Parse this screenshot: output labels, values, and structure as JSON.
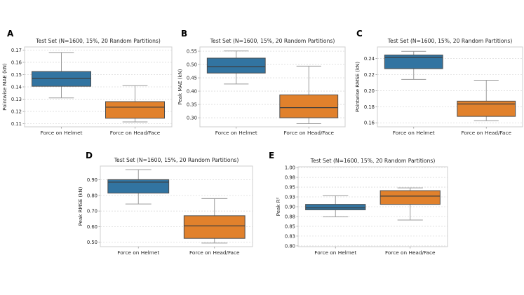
{
  "figure_background": "#ffffff",
  "shared": {
    "title": "Test Set (N=1600, 15%, 20 Random Partitions)",
    "categories": [
      "Force on Helmet",
      "Force on Head/Face"
    ]
  },
  "colors": {
    "helmet_box": "#3274a1",
    "headface_box": "#e1812c",
    "box_edge": "#4d4d4d",
    "median_line": "#3d3d3d",
    "whisker": "#9a9a9a",
    "grid": "#dcdcdc",
    "spine": "#cfcfcf",
    "text": "#262626"
  },
  "chart_data": [
    {
      "panel": "A",
      "type": "boxplot",
      "title": "Test Set (N=1600, 15%, 20 Random Partitions)",
      "ylabel": "Pointwise MAE (kN)",
      "categories": [
        "Force on Helmet",
        "Force on Head/Face"
      ],
      "ylim": [
        0.1075,
        0.1725
      ],
      "ytick_vals": [
        0.11,
        0.12,
        0.13,
        0.14,
        0.15,
        0.16,
        0.17
      ],
      "ytick_labels": [
        "0.11",
        "0.12",
        "0.13",
        "0.14",
        "0.15",
        "0.16",
        "0.17"
      ],
      "grid": "horizontal-dashed",
      "legend": "none",
      "series": [
        {
          "name": "Force on Helmet",
          "color": "#3274a1",
          "whisker_low": 0.131,
          "q1": 0.1405,
          "median": 0.147,
          "q3": 0.1525,
          "whisker_high": 0.168
        },
        {
          "name": "Force on Head/Face",
          "color": "#e1812c",
          "whisker_low": 0.1115,
          "q1": 0.1145,
          "median": 0.1235,
          "q3": 0.128,
          "whisker_high": 0.141
        }
      ]
    },
    {
      "panel": "B",
      "type": "boxplot",
      "title": "Test Set (N=1600, 15%, 20 Random Partitions)",
      "ylabel": "Peak MAE (kN)",
      "categories": [
        "Force on Helmet",
        "Force on Head/Face"
      ],
      "ylim": [
        0.266,
        0.566
      ],
      "ytick_vals": [
        0.3,
        0.35,
        0.4,
        0.45,
        0.5,
        0.55
      ],
      "ytick_labels": [
        "0.30",
        "0.35",
        "0.40",
        "0.45",
        "0.50",
        "0.55"
      ],
      "grid": "horizontal-dashed",
      "legend": "none",
      "series": [
        {
          "name": "Force on Helmet",
          "color": "#3274a1",
          "whisker_low": 0.427,
          "q1": 0.468,
          "median": 0.492,
          "q3": 0.524,
          "whisker_high": 0.551
        },
        {
          "name": "Force on Head/Face",
          "color": "#e1812c",
          "whisker_low": 0.278,
          "q1": 0.3,
          "median": 0.338,
          "q3": 0.386,
          "whisker_high": 0.494
        }
      ]
    },
    {
      "panel": "C",
      "type": "boxplot",
      "title": "Test Set (N=1600, 15%, 20 Random Partitions)",
      "ylabel": "Pointwise RMSE (kN)",
      "categories": [
        "Force on Helmet",
        "Force on Head/Face"
      ],
      "ylim": [
        0.155,
        0.2545
      ],
      "ytick_vals": [
        0.16,
        0.18,
        0.2,
        0.22,
        0.24
      ],
      "ytick_labels": [
        "0.16",
        "0.18",
        "0.20",
        "0.22",
        "0.24"
      ],
      "grid": "horizontal-dashed",
      "legend": "none",
      "series": [
        {
          "name": "Force on Helmet",
          "color": "#3274a1",
          "whisker_low": 0.214,
          "q1": 0.2275,
          "median": 0.2415,
          "q3": 0.2445,
          "whisker_high": 0.249
        },
        {
          "name": "Force on Head/Face",
          "color": "#e1812c",
          "whisker_low": 0.1625,
          "q1": 0.168,
          "median": 0.1835,
          "q3": 0.187,
          "whisker_high": 0.213
        }
      ]
    },
    {
      "panel": "D",
      "type": "boxplot",
      "title": "Test Set (N=1600, 15%, 20 Random Partitions)",
      "ylabel": "Peak RMSE (kN)",
      "categories": [
        "Force on Helmet",
        "Force on Head/Face"
      ],
      "ylim": [
        0.472,
        0.988
      ],
      "ytick_vals": [
        0.5,
        0.6,
        0.7,
        0.8,
        0.9
      ],
      "ytick_labels": [
        "0.50",
        "0.60",
        "0.70",
        "0.80",
        "0.90"
      ],
      "grid": "horizontal-dashed",
      "legend": "none",
      "series": [
        {
          "name": "Force on Helmet",
          "color": "#3274a1",
          "whisker_low": 0.745,
          "q1": 0.815,
          "median": 0.885,
          "q3": 0.901,
          "whisker_high": 0.965
        },
        {
          "name": "Force on Head/Face",
          "color": "#e1812c",
          "whisker_low": 0.495,
          "q1": 0.525,
          "median": 0.605,
          "q3": 0.67,
          "whisker_high": 0.78
        }
      ]
    },
    {
      "panel": "E",
      "type": "boxplot",
      "title": "Test Set (N=1600, 15%, 20 Random Partitions)",
      "ylabel": "Peak R²",
      "categories": [
        "Force on Helmet",
        "Force on Head/Face"
      ],
      "ylim": [
        0.798,
        1.002
      ],
      "ytick_vals": [
        0.8,
        0.825,
        0.85,
        0.875,
        0.9,
        0.925,
        0.95,
        0.975,
        1.0
      ],
      "ytick_labels": [
        "0.80",
        "0.83",
        "0.85",
        "0.88",
        "0.90",
        "0.93",
        "0.95",
        "0.98",
        "1.00"
      ],
      "grid": "horizontal-dashed",
      "legend": "none",
      "series": [
        {
          "name": "Force on Helmet",
          "color": "#3274a1",
          "whisker_low": 0.874,
          "q1": 0.892,
          "median": 0.897,
          "q3": 0.906,
          "whisker_high": 0.928
        },
        {
          "name": "Force on Head/Face",
          "color": "#e1812c",
          "whisker_low": 0.866,
          "q1": 0.906,
          "median": 0.927,
          "q3": 0.941,
          "whisker_high": 0.948
        }
      ]
    }
  ]
}
